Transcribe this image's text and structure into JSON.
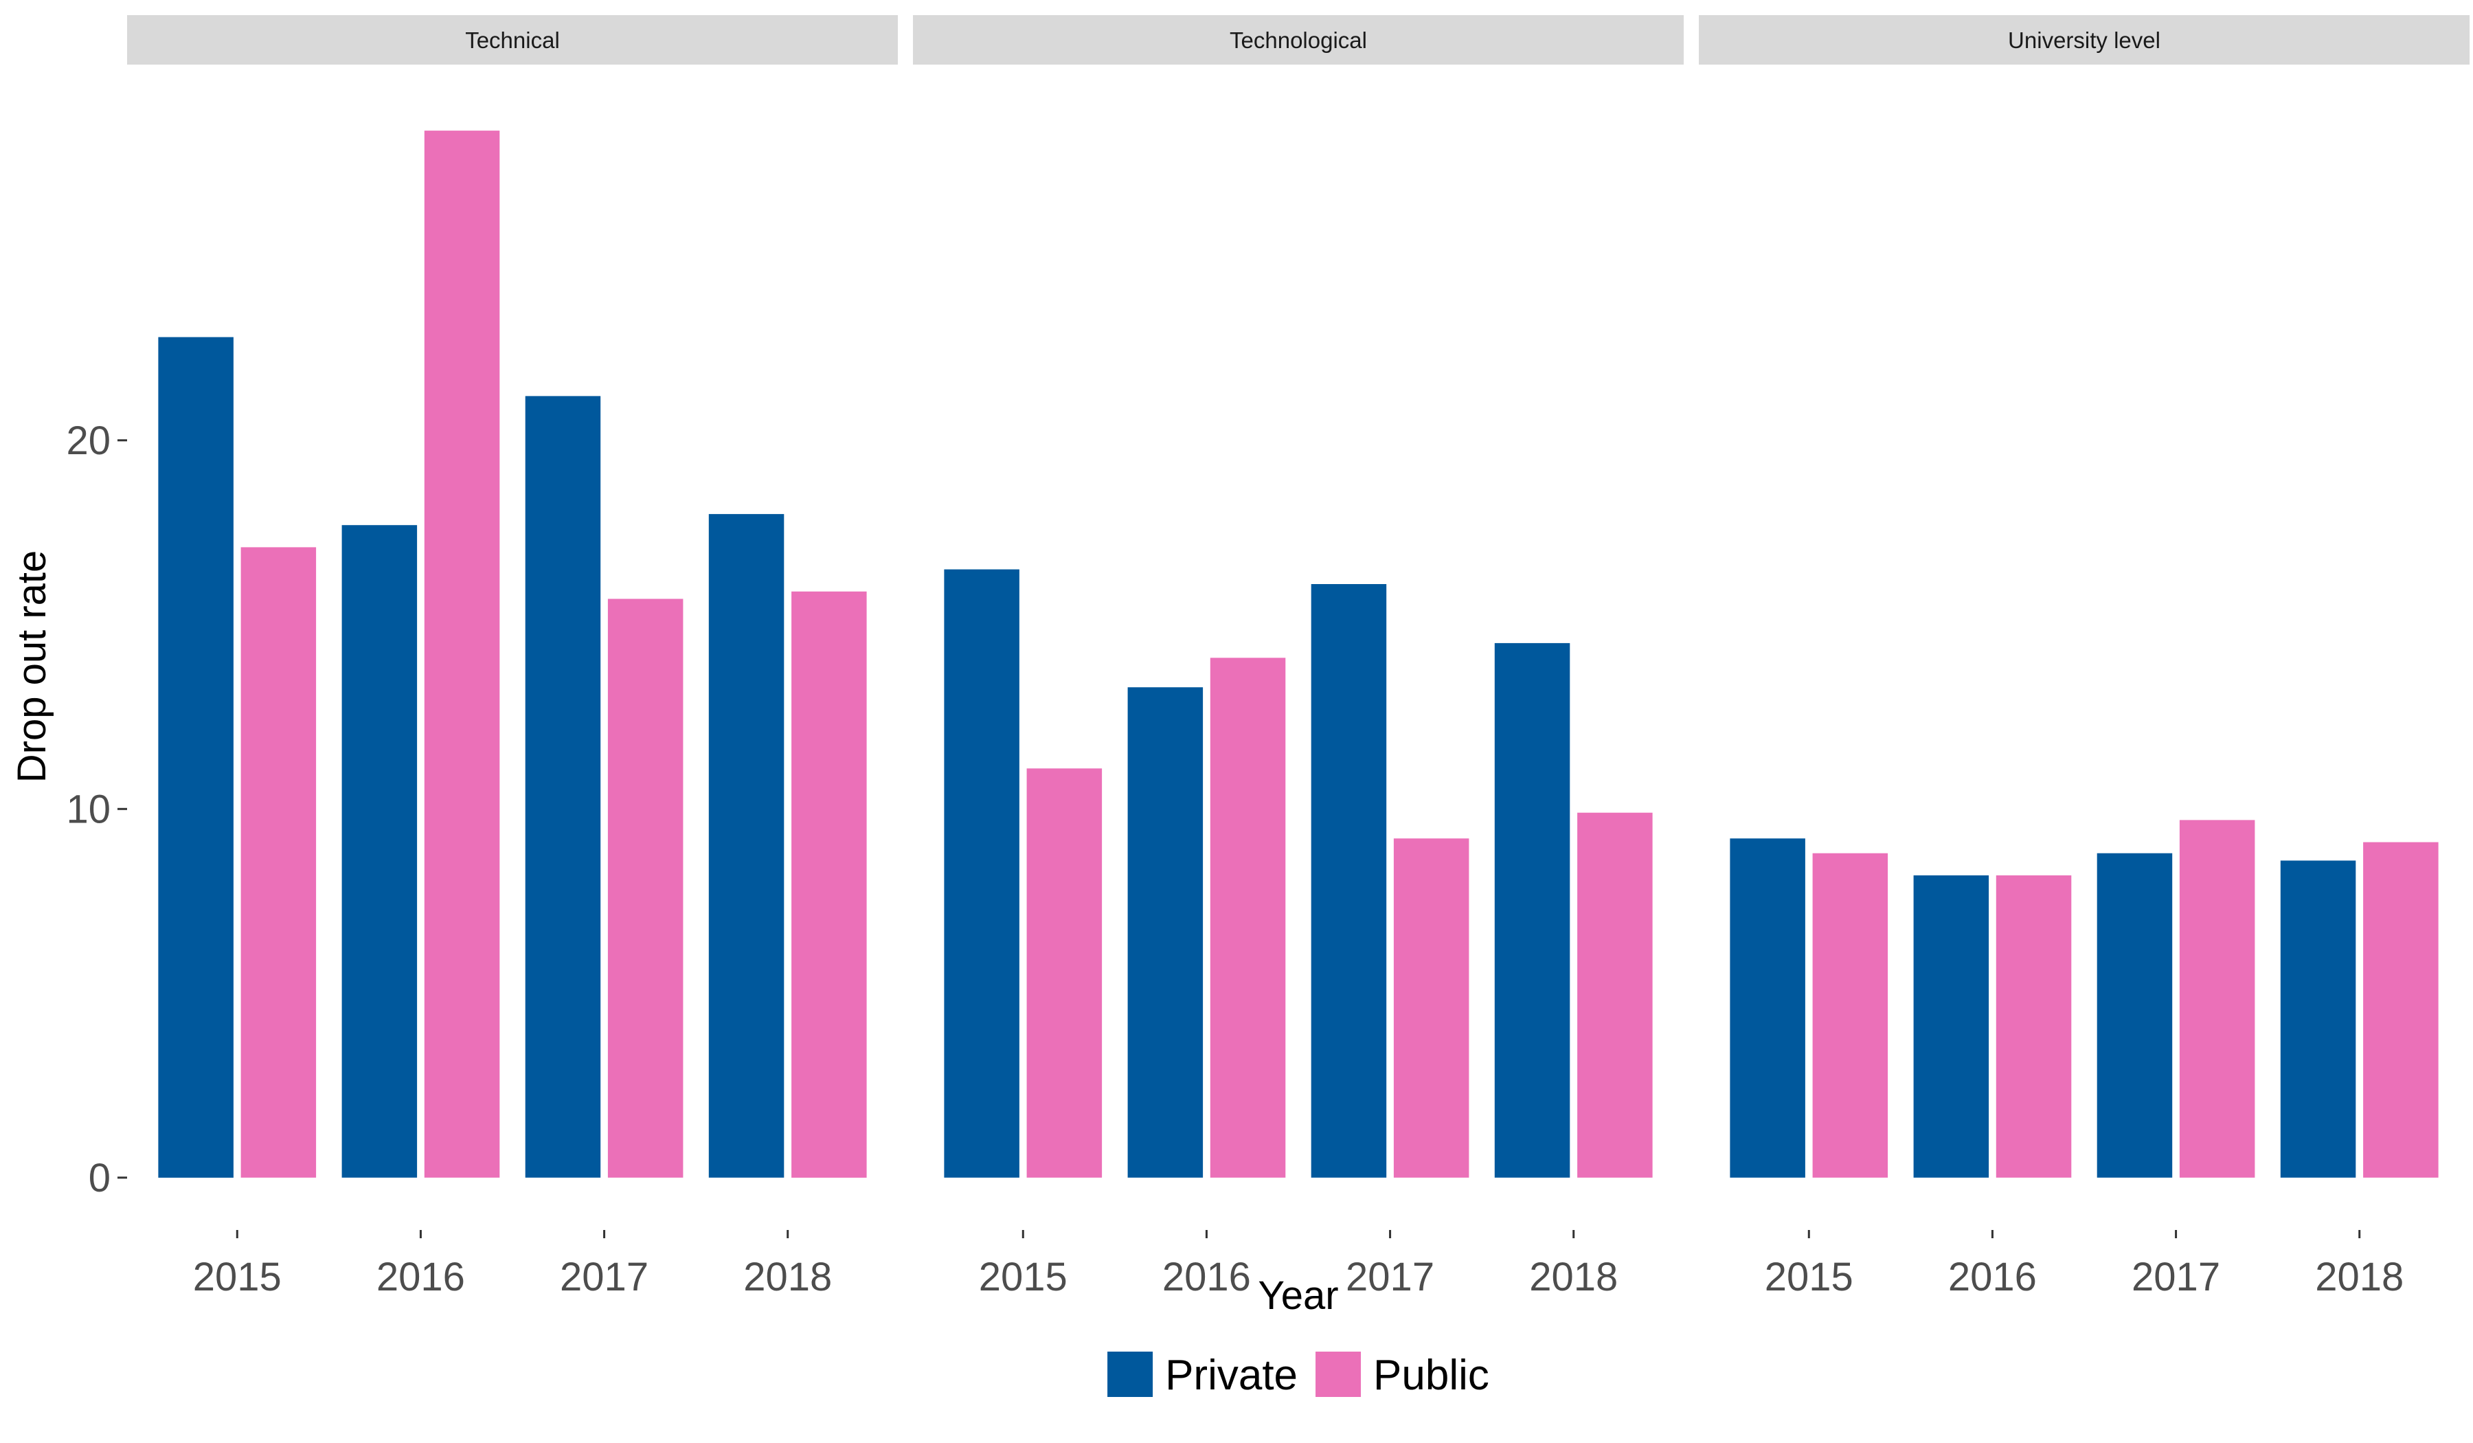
{
  "chart_data": {
    "type": "bar",
    "facets": [
      {
        "label": "Technical",
        "categories": [
          "2015",
          "2016",
          "2017",
          "2018"
        ],
        "series": [
          {
            "name": "Private",
            "values": [
              22.8,
              17.7,
              21.2,
              18.0
            ]
          },
          {
            "name": "Public",
            "values": [
              17.1,
              28.4,
              15.7,
              15.9
            ]
          }
        ]
      },
      {
        "label": "Technological",
        "categories": [
          "2015",
          "2016",
          "2017",
          "2018"
        ],
        "series": [
          {
            "name": "Private",
            "values": [
              16.5,
              13.3,
              16.1,
              14.5
            ]
          },
          {
            "name": "Public",
            "values": [
              11.1,
              14.1,
              9.2,
              9.9
            ]
          }
        ]
      },
      {
        "label": "University level",
        "categories": [
          "2015",
          "2016",
          "2017",
          "2018"
        ],
        "series": [
          {
            "name": "Private",
            "values": [
              9.2,
              8.2,
              8.8,
              8.6
            ]
          },
          {
            "name": "Public",
            "values": [
              8.8,
              8.2,
              9.7,
              9.1
            ]
          }
        ]
      }
    ],
    "xlabel": "Year",
    "ylabel": "Drop out rate",
    "y_ticks": [
      0,
      10,
      20
    ],
    "ylim": [
      -1.42,
      29.8
    ],
    "grid": false,
    "legend": {
      "position": "bottom",
      "entries": [
        "Private",
        "Public"
      ]
    },
    "colors": {
      "Private": "#00589C",
      "Public": "#EB70B8"
    }
  }
}
